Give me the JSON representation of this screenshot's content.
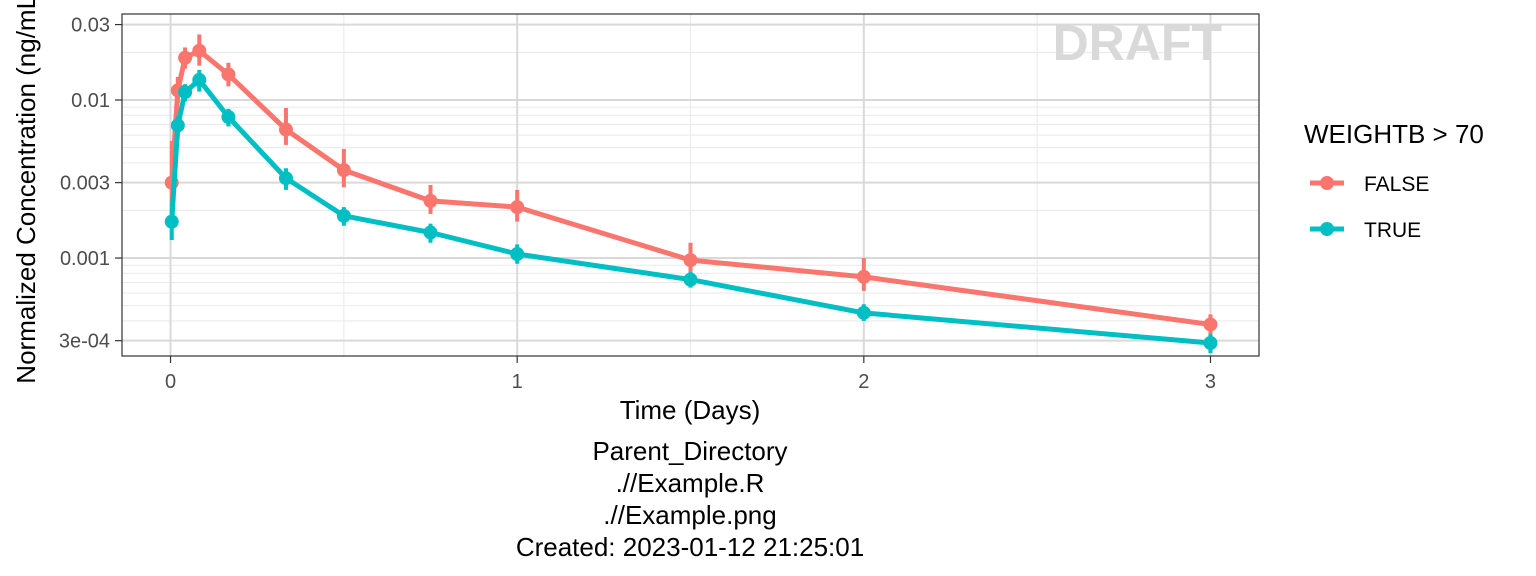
{
  "chart_data": {
    "type": "line",
    "xlabel": "Time (Days)",
    "ylabel": "Normalized Concentration (ng/mL)",
    "y_scale": "log",
    "xlim": [
      -0.14,
      3.14
    ],
    "ylim": [
      0.00024,
      0.035
    ],
    "x_ticks": [
      0,
      1,
      2,
      3
    ],
    "x_tick_labels": [
      "0",
      "1",
      "2",
      "3"
    ],
    "y_ticks": [
      0.0003,
      0.001,
      0.003,
      0.01,
      0.03
    ],
    "y_tick_labels": [
      "3e-04",
      "0.001",
      "0.003",
      "0.01",
      "0.03"
    ],
    "grid": true,
    "watermark": "DRAFT",
    "legend": {
      "title": "WEIGHTB > 70",
      "placement": "right"
    },
    "caption": [
      "Parent_Directory",
      ".//Example.R",
      ".//Example.png",
      "Created: 2023-01-12 21:25:01"
    ],
    "series": [
      {
        "name": "FALSE",
        "color": "#F8766D",
        "x": [
          0.0035,
          0.021,
          0.042,
          0.083,
          0.167,
          0.333,
          0.5,
          0.75,
          1.0,
          1.5,
          2.0,
          3.0
        ],
        "y": [
          0.003,
          0.0115,
          0.0185,
          0.0205,
          0.0145,
          0.0065,
          0.0036,
          0.0023,
          0.0021,
          0.00097,
          0.00076,
          0.00038
        ],
        "lower": [
          0.0022,
          0.0095,
          0.0158,
          0.0165,
          0.0122,
          0.0052,
          0.0028,
          0.0019,
          0.0017,
          0.00082,
          0.00062,
          0.00032
        ],
        "upper": [
          0.0055,
          0.014,
          0.0215,
          0.026,
          0.0172,
          0.0089,
          0.0049,
          0.0029,
          0.0027,
          0.00125,
          0.001,
          0.00044
        ]
      },
      {
        "name": "TRUE",
        "color": "#00BFC4",
        "x": [
          0.0035,
          0.021,
          0.042,
          0.083,
          0.167,
          0.333,
          0.5,
          0.75,
          1.0,
          1.5,
          2.0,
          3.0
        ],
        "y": [
          0.0017,
          0.0069,
          0.0112,
          0.0134,
          0.0078,
          0.0032,
          0.00185,
          0.00145,
          0.00106,
          0.00073,
          0.00045,
          0.00029
        ],
        "lower": [
          0.0013,
          0.0058,
          0.0098,
          0.0113,
          0.0068,
          0.0027,
          0.0016,
          0.00125,
          0.00092,
          0.00065,
          0.0004,
          0.00025
        ],
        "upper": [
          0.0022,
          0.0079,
          0.0126,
          0.0155,
          0.0088,
          0.0037,
          0.0021,
          0.00165,
          0.00122,
          0.00082,
          0.00051,
          0.00033
        ]
      }
    ]
  }
}
